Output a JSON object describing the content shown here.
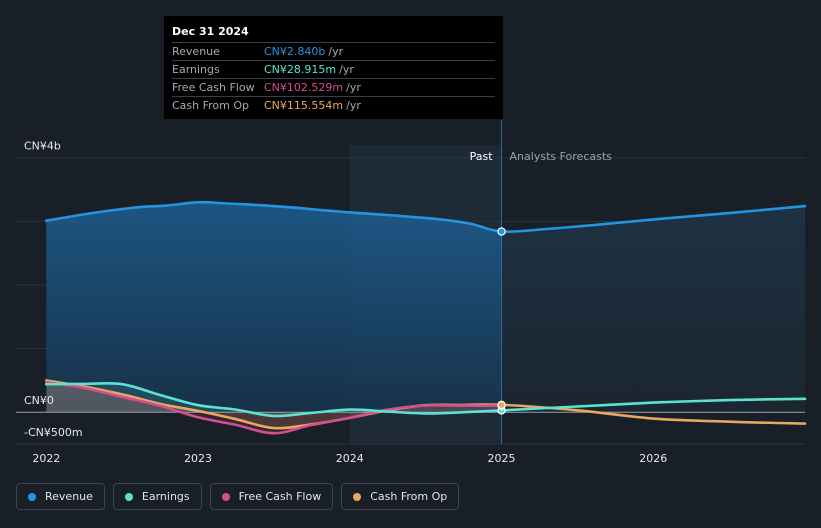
{
  "chart_data": {
    "type": "area",
    "y_axis_labels": [
      {
        "value": 4000,
        "label": "CN¥4b"
      },
      {
        "value": 0,
        "label": "CN¥0"
      },
      {
        "value": -500,
        "label": "-CN¥500m"
      }
    ],
    "ylim": [
      -500,
      4200
    ],
    "xlim": [
      2021.8,
      2027.0
    ],
    "x_ticks": [
      {
        "value": 2022,
        "label": "2022"
      },
      {
        "value": 2023,
        "label": "2023"
      },
      {
        "value": 2024,
        "label": "2024"
      },
      {
        "value": 2025,
        "label": "2025"
      },
      {
        "value": 2026,
        "label": "2026"
      }
    ],
    "divider_x": 2025.0,
    "past_label": "Past",
    "forecast_label": "Analysts Forecasts",
    "series": [
      {
        "name": "Revenue",
        "color": "#2394df",
        "points": [
          [
            2022.0,
            3010
          ],
          [
            2022.3,
            3130
          ],
          [
            2022.6,
            3220
          ],
          [
            2022.8,
            3250
          ],
          [
            2023.0,
            3300
          ],
          [
            2023.2,
            3280
          ],
          [
            2023.5,
            3240
          ],
          [
            2023.8,
            3180
          ],
          [
            2024.0,
            3140
          ],
          [
            2024.3,
            3090
          ],
          [
            2024.6,
            3030
          ],
          [
            2024.8,
            2960
          ],
          [
            2025.0,
            2840
          ],
          [
            2025.3,
            2880
          ],
          [
            2025.6,
            2940
          ],
          [
            2026.0,
            3030
          ],
          [
            2026.5,
            3130
          ],
          [
            2027.0,
            3240
          ]
        ]
      },
      {
        "name": "Earnings",
        "color": "#5be3cf",
        "points": [
          [
            2022.0,
            440
          ],
          [
            2022.25,
            445
          ],
          [
            2022.5,
            440
          ],
          [
            2022.75,
            270
          ],
          [
            2023.0,
            110
          ],
          [
            2023.25,
            40
          ],
          [
            2023.5,
            -60
          ],
          [
            2023.75,
            -10
          ],
          [
            2024.0,
            40
          ],
          [
            2024.25,
            10
          ],
          [
            2024.5,
            -20
          ],
          [
            2024.75,
            0
          ],
          [
            2025.0,
            28
          ],
          [
            2025.5,
            90
          ],
          [
            2026.0,
            150
          ],
          [
            2026.5,
            190
          ],
          [
            2027.0,
            210
          ]
        ]
      },
      {
        "name": "Free Cash Flow",
        "color": "#d34f8f",
        "points": [
          [
            2022.0,
            470
          ],
          [
            2022.25,
            380
          ],
          [
            2022.5,
            240
          ],
          [
            2022.75,
            100
          ],
          [
            2023.0,
            -80
          ],
          [
            2023.25,
            -200
          ],
          [
            2023.5,
            -330
          ],
          [
            2023.75,
            -200
          ],
          [
            2024.0,
            -90
          ],
          [
            2024.25,
            40
          ],
          [
            2024.5,
            105
          ],
          [
            2024.75,
            103
          ],
          [
            2025.0,
            102.5
          ]
        ]
      },
      {
        "name": "Cash From Op",
        "color": "#e9a75f",
        "points": [
          [
            2022.0,
            500
          ],
          [
            2022.25,
            400
          ],
          [
            2022.5,
            280
          ],
          [
            2022.75,
            130
          ],
          [
            2023.0,
            20
          ],
          [
            2023.25,
            -110
          ],
          [
            2023.5,
            -250
          ],
          [
            2023.75,
            -190
          ],
          [
            2024.0,
            -90
          ],
          [
            2024.25,
            30
          ],
          [
            2024.5,
            110
          ],
          [
            2024.75,
            113
          ],
          [
            2025.0,
            115.5
          ],
          [
            2025.5,
            30
          ],
          [
            2026.0,
            -100
          ],
          [
            2026.5,
            -150
          ],
          [
            2027.0,
            -180
          ]
        ]
      }
    ]
  },
  "tooltip": {
    "date": "Dec 31 2024",
    "rows": [
      {
        "label": "Revenue",
        "value": "CN¥2.840b",
        "unit": "/yr",
        "color": "#2394df"
      },
      {
        "label": "Earnings",
        "value": "CN¥28.915m",
        "unit": "/yr",
        "color": "#5be3cf"
      },
      {
        "label": "Free Cash Flow",
        "value": "CN¥102.529m",
        "unit": "/yr",
        "color": "#d34f8f"
      },
      {
        "label": "Cash From Op",
        "value": "CN¥115.554m",
        "unit": "/yr",
        "color": "#e9a75f"
      }
    ]
  },
  "legend": [
    {
      "label": "Revenue",
      "color": "#2394df"
    },
    {
      "label": "Earnings",
      "color": "#5be3cf"
    },
    {
      "label": "Free Cash Flow",
      "color": "#d34f8f"
    },
    {
      "label": "Cash From Op",
      "color": "#e9a75f"
    }
  ]
}
